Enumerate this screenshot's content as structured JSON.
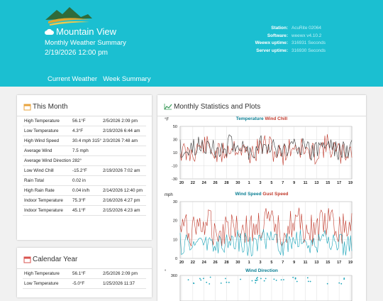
{
  "header": {
    "station_name": "Mountain View",
    "subtitle": "Monthly Weather Summary",
    "datetime": "2/19/2026 12:00 pm",
    "info": [
      {
        "label": "Station:",
        "value": "AcuRite 02064"
      },
      {
        "label": "Software:",
        "value": "weewx v4.10.2"
      },
      {
        "label": "Weewx uptime:",
        "value": "316931 Seconds"
      },
      {
        "label": "Server uptime:",
        "value": "316930 Seconds"
      }
    ]
  },
  "nav": [
    "Current Weather",
    "Week Summary"
  ],
  "this_month": {
    "title": "This Month",
    "rows": [
      {
        "label": "High Temperature",
        "value": "56.1°F",
        "time": "2/5/2026 2:09 pm"
      },
      {
        "label": "Low Temperature",
        "value": "4.3°F",
        "time": "2/19/2026 6:44 am"
      },
      {
        "label": "High Wind Speed",
        "value": "30.4 mph 315°",
        "time": "2/3/2026 7:48 am"
      },
      {
        "label": "Average Wind",
        "value": "7.5 mph",
        "time": ""
      },
      {
        "label": "Average Wind Direction",
        "value": "282°",
        "time": ""
      },
      {
        "label": "Low Wind Chill",
        "value": "-15.2°F",
        "time": "2/19/2026 7:02 am"
      },
      {
        "label": "Rain Total",
        "value": "0.02 in",
        "time": ""
      },
      {
        "label": "High Rain Rate",
        "value": "0.04 in/h",
        "time": "2/14/2026 12:40 pm"
      },
      {
        "label": "Indoor Temperature",
        "value": "75.3°F",
        "time": "2/16/2026 4:27 pm"
      },
      {
        "label": "Indoor Temperature",
        "value": "45.1°F",
        "time": "2/15/2026 4:23 am"
      }
    ]
  },
  "calendar_year": {
    "title": "Calendar Year",
    "rows": [
      {
        "label": "High Temperature",
        "value": "56.1°F",
        "time": "2/5/2026 2:09 pm"
      },
      {
        "label": "Low Temperature",
        "value": "-5.0°F",
        "time": "1/25/2026 11:37"
      }
    ]
  },
  "plots": {
    "title": "Monthly Statistics and Plots",
    "x_ticks": [
      "20",
      "22",
      "24",
      "26",
      "28",
      "30",
      "1",
      "3",
      "5",
      "7",
      "9",
      "11",
      "13",
      "15",
      "17",
      "19"
    ],
    "temp": {
      "unit": "°F",
      "title_a": "Temperature",
      "title_b": "Wind Chill",
      "y_ticks": [
        "50",
        "30",
        "10",
        "-10",
        "-30"
      ]
    },
    "wind": {
      "unit": "mph",
      "title_a": "Wind Speed",
      "title_b": "Gust Speed",
      "y_ticks": [
        "30",
        "20",
        "10",
        "0"
      ]
    },
    "dir": {
      "unit": "°",
      "title": "Wind Direction",
      "y_ticks": [
        "360"
      ]
    }
  },
  "colors": {
    "header": "#1bbfd1",
    "series_a": "#17a3b8",
    "series_b": "#c0392b"
  }
}
